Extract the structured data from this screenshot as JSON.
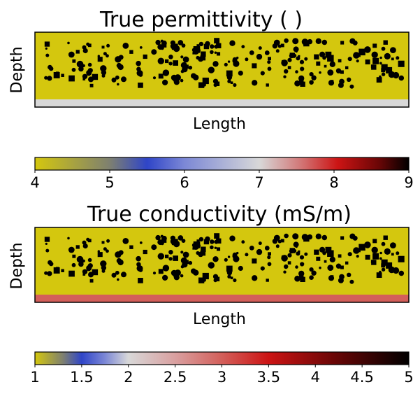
{
  "charts": [
    {
      "type": "heatmap",
      "title": "True permittivity ( )",
      "xlabel": "Length",
      "ylabel": "Depth",
      "background_color": "#d4c70e",
      "inclusion_color": "#000000",
      "bottom_layer_color": "#d8d8d8",
      "colorbar": {
        "min": 4,
        "max": 9,
        "ticks": [
          "4",
          "5",
          "6",
          "7",
          "8",
          "9"
        ],
        "stops": [
          {
            "v": 4.0,
            "c": "#d4c70e"
          },
          {
            "v": 5.0,
            "c": "#7e8070"
          },
          {
            "v": 5.5,
            "c": "#2f45c8"
          },
          {
            "v": 6.0,
            "c": "#7c88d6"
          },
          {
            "v": 7.0,
            "c": "#d8d8d8"
          },
          {
            "v": 7.55,
            "c": "#d27878"
          },
          {
            "v": 8.05,
            "c": "#cc1414"
          },
          {
            "v": 8.6,
            "c": "#6a0606"
          },
          {
            "v": 9.0,
            "c": "#000000"
          }
        ]
      }
    },
    {
      "type": "heatmap",
      "title": "True conductivity (mS/m)",
      "xlabel": "Length",
      "ylabel": "Depth",
      "background_color": "#d4c70e",
      "inclusion_color": "#000000",
      "bottom_layer_color": "#d35f5a",
      "colorbar": {
        "min": 1,
        "max": 5,
        "ticks": [
          "1",
          "1.5",
          "2",
          "2.5",
          "3",
          "3.5",
          "4",
          "4.5",
          "5"
        ],
        "stops": [
          {
            "v": 1.0,
            "c": "#d4c70e"
          },
          {
            "v": 1.3,
            "c": "#7e8070"
          },
          {
            "v": 1.5,
            "c": "#2f45c8"
          },
          {
            "v": 1.75,
            "c": "#7c88d6"
          },
          {
            "v": 2.0,
            "c": "#d8d8d8"
          },
          {
            "v": 2.5,
            "c": "#d9a0a0"
          },
          {
            "v": 3.0,
            "c": "#d35f5a"
          },
          {
            "v": 3.5,
            "c": "#cc1414"
          },
          {
            "v": 4.2,
            "c": "#6a0606"
          },
          {
            "v": 5.0,
            "c": "#000000"
          }
        ]
      }
    }
  ]
}
